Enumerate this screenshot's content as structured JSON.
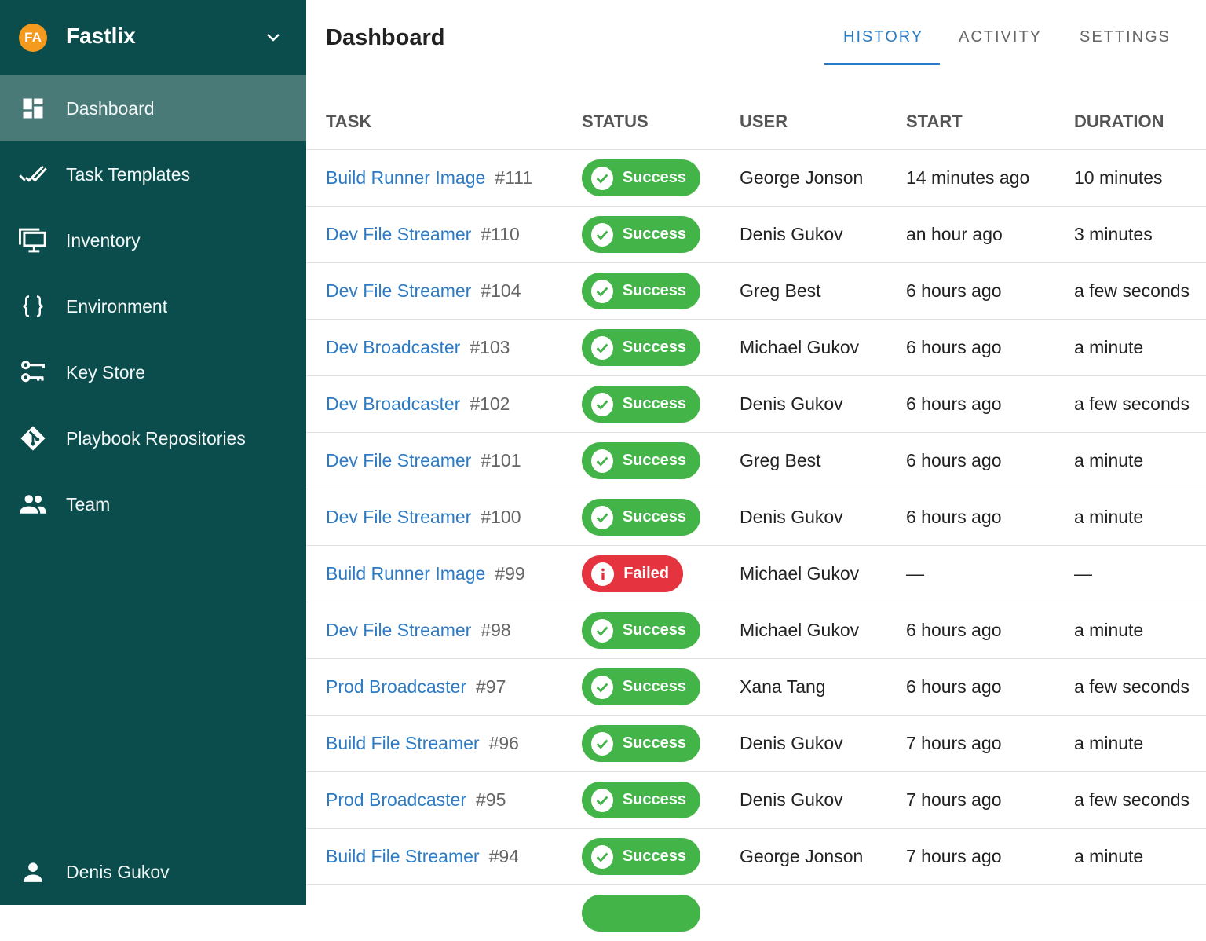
{
  "app": {
    "initials": "FA",
    "name": "Fastlix",
    "avatar_color": "#f39a1f"
  },
  "sidebar": {
    "items": [
      {
        "label": "Dashboard",
        "icon": "dashboard-icon",
        "active": true
      },
      {
        "label": "Task Templates",
        "icon": "double-check-icon"
      },
      {
        "label": "Inventory",
        "icon": "monitor-icon"
      },
      {
        "label": "Environment",
        "icon": "braces-icon"
      },
      {
        "label": "Key Store",
        "icon": "keys-icon"
      },
      {
        "label": "Playbook Repositories",
        "icon": "git-icon"
      },
      {
        "label": "Team",
        "icon": "team-icon"
      }
    ],
    "user": "Denis Gukov"
  },
  "header": {
    "title": "Dashboard",
    "tabs": [
      {
        "label": "HISTORY",
        "active": true
      },
      {
        "label": "ACTIVITY"
      },
      {
        "label": "SETTINGS"
      }
    ]
  },
  "table": {
    "columns": [
      "TASK",
      "STATUS",
      "USER",
      "START",
      "DURATION"
    ],
    "rows": [
      {
        "task": "Build Runner Image",
        "num": "#111",
        "status": "Success",
        "user": "George Jonson",
        "start": "14 minutes ago",
        "duration": "10 minutes"
      },
      {
        "task": "Dev File Streamer",
        "num": "#110",
        "status": "Success",
        "user": "Denis Gukov",
        "start": "an hour ago",
        "duration": "3 minutes"
      },
      {
        "task": "Dev File Streamer",
        "num": "#104",
        "status": "Success",
        "user": "Greg Best",
        "start": "6 hours ago",
        "duration": "a few seconds"
      },
      {
        "task": "Dev Broadcaster",
        "num": "#103",
        "status": "Success",
        "user": "Michael Gukov",
        "start": "6 hours ago",
        "duration": "a minute"
      },
      {
        "task": "Dev Broadcaster",
        "num": "#102",
        "status": "Success",
        "user": "Denis Gukov",
        "start": "6 hours ago",
        "duration": "a few seconds"
      },
      {
        "task": "Dev File Streamer",
        "num": "#101",
        "status": "Success",
        "user": "Greg Best",
        "start": "6 hours ago",
        "duration": "a minute"
      },
      {
        "task": "Dev File Streamer",
        "num": "#100",
        "status": "Success",
        "user": "Denis Gukov",
        "start": "6 hours ago",
        "duration": "a minute"
      },
      {
        "task": "Build Runner Image",
        "num": "#99",
        "status": "Failed",
        "user": "Michael Gukov",
        "start": "—",
        "duration": "—"
      },
      {
        "task": "Dev File Streamer",
        "num": "#98",
        "status": "Success",
        "user": "Michael Gukov",
        "start": "6 hours ago",
        "duration": "a minute"
      },
      {
        "task": "Prod Broadcaster",
        "num": "#97",
        "status": "Success",
        "user": "Xana Tang",
        "start": "6 hours ago",
        "duration": "a few seconds"
      },
      {
        "task": "Build File Streamer",
        "num": "#96",
        "status": "Success",
        "user": "Denis Gukov",
        "start": "7 hours ago",
        "duration": "a minute"
      },
      {
        "task": "Prod Broadcaster",
        "num": "#95",
        "status": "Success",
        "user": "Denis Gukov",
        "start": "7 hours ago",
        "duration": "a few seconds"
      },
      {
        "task": "Build File Streamer",
        "num": "#94",
        "status": "Success",
        "user": "George Jonson",
        "start": "7 hours ago",
        "duration": "a minute"
      }
    ]
  },
  "colors": {
    "sidebar": "#0b4d4c",
    "accent": "#2c7bc4",
    "success": "#43b548",
    "failed": "#e5343f"
  }
}
